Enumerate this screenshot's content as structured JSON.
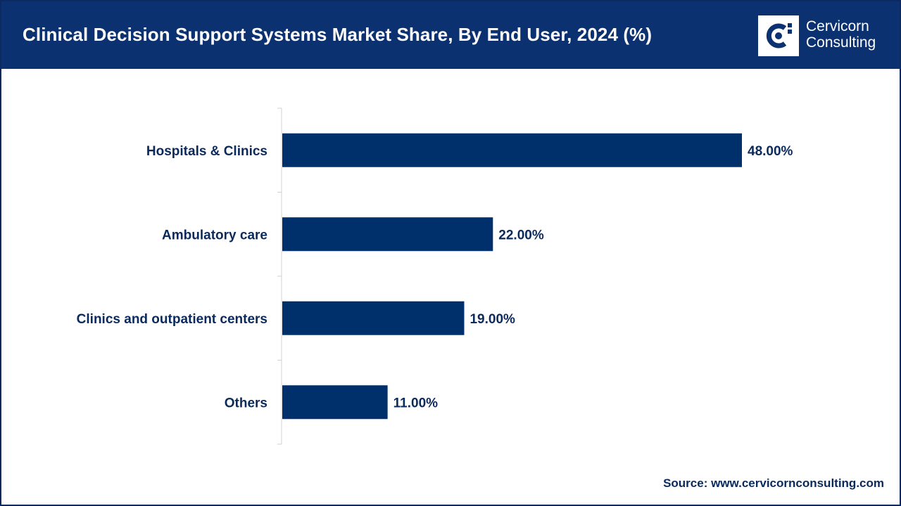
{
  "header": {
    "title": "Clinical Decision Support Systems Market Share, By End User, 2024 (%)",
    "logo_line1": "Cervicorn",
    "logo_line2": "Consulting"
  },
  "colors": {
    "header_bg": "#0b3170",
    "bar": "#00306b",
    "text": "#0b2a5c"
  },
  "chart_data": {
    "type": "bar",
    "orientation": "horizontal",
    "title": "Clinical Decision Support Systems Market Share, By End User, 2024 (%)",
    "categories": [
      "Hospitals & Clinics",
      "Ambulatory care",
      "Clinics and outpatient centers",
      "Others"
    ],
    "values": [
      48.0,
      22.0,
      19.0,
      11.0
    ],
    "value_labels": [
      "48.00%",
      "22.00%",
      "19.00%",
      "11.00%"
    ],
    "xlim": [
      0,
      60
    ],
    "grid": false,
    "legend": "none"
  },
  "footer": {
    "source": "Source: www.cervicornconsulting.com"
  }
}
